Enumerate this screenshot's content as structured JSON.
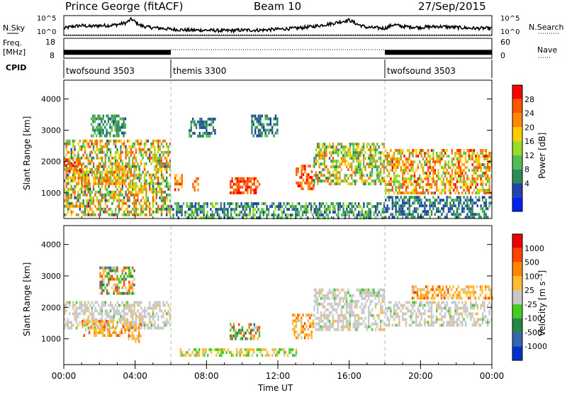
{
  "header": {
    "station": "Prince George (fitACF)",
    "beam": "Beam 10",
    "date": "27/Sep/2015"
  },
  "left_labels": {
    "nsky": "N.Sky",
    "freq_top": "Freq.",
    "freq_unit": "[MHz]",
    "cpid": "CPID"
  },
  "right_labels": {
    "nsearch": "N.Search",
    "nave": "Nave"
  },
  "colors": {
    "power_scale": [
      "#0022ee",
      "#2244aa",
      "#2e8b57",
      "#55bb55",
      "#99dd22",
      "#ffcc00",
      "#ff8800",
      "#ff5500",
      "#ff0000"
    ],
    "velocity_scale": [
      "#0033cc",
      "#3366aa",
      "#228844",
      "#44cc22",
      "#c8c8c8",
      "#ffbb33",
      "#ff8800",
      "#ff4400",
      "#ee0000"
    ],
    "mode_divider": "#bbbbbb"
  },
  "chart_data": [
    {
      "type": "line",
      "name": "nsky-nsearch",
      "ylabels": [
        "10^5",
        "10^0"
      ],
      "ylabels_right": [
        "10^5",
        "10^0"
      ],
      "x_hours": [
        0,
        0.5,
        1,
        1.5,
        2,
        2.5,
        3,
        3.5,
        3.8,
        4,
        4.3,
        4.8,
        5.5,
        6,
        7,
        8,
        9,
        10,
        11,
        12,
        13,
        14,
        15,
        16,
        16.5,
        17,
        18,
        18.5,
        19,
        20,
        21,
        22,
        23,
        24
      ],
      "y_level": [
        0.35,
        0.45,
        0.5,
        0.45,
        0.5,
        0.5,
        0.55,
        0.65,
        0.85,
        0.7,
        0.5,
        0.4,
        0.35,
        0.3,
        0.25,
        0.25,
        0.22,
        0.25,
        0.25,
        0.3,
        0.35,
        0.45,
        0.6,
        0.8,
        0.55,
        0.4,
        0.35,
        0.55,
        0.45,
        0.4,
        0.45,
        0.4,
        0.35,
        0.35
      ]
    },
    {
      "type": "line",
      "name": "freq-nave",
      "ylabels": [
        "18",
        "8"
      ],
      "ylabels_right": [
        "60",
        "0"
      ],
      "segments_mhz": [
        {
          "start": 0,
          "end": 6,
          "freq_mhz": 10.6
        },
        {
          "start": 18,
          "end": 24,
          "freq_mhz": 10.6
        }
      ],
      "nave_dotted": {
        "start": 6,
        "end": 18
      }
    },
    {
      "type": "table",
      "name": "cpid",
      "modes": [
        {
          "start": 0,
          "label": "twofsound 3503"
        },
        {
          "start": 6,
          "label": "themis 3300"
        },
        {
          "start": 18,
          "label": "twofsound 3503"
        }
      ]
    },
    {
      "type": "heatmap",
      "name": "power",
      "ylabel": "Slant Range [km]",
      "yticks": [
        1000,
        2000,
        3000,
        4000
      ],
      "ylim": [
        180,
        4600
      ],
      "xlim": [
        0,
        24
      ],
      "colorbar_label": "Power [dB]",
      "colorbar_ticks": [
        "28",
        "24",
        "20",
        "16",
        "12",
        "8",
        "4"
      ],
      "colorbar_range": [
        0,
        32
      ],
      "regions": [
        {
          "x0": 0,
          "x1": 6,
          "r0": 300,
          "r1": 2700,
          "v0": 6,
          "v1": 28
        },
        {
          "x0": 0,
          "x1": 1,
          "r0": 1700,
          "r1": 2100,
          "v0": 22,
          "v1": 30
        },
        {
          "x0": 0.5,
          "x1": 3.5,
          "r0": 1300,
          "r1": 1700,
          "v0": 16,
          "v1": 26
        },
        {
          "x0": 1.5,
          "x1": 3.5,
          "r0": 2800,
          "r1": 3500,
          "v0": 6,
          "v1": 14
        },
        {
          "x0": 3.6,
          "x1": 4.3,
          "r0": 1000,
          "r1": 1600,
          "v0": 14,
          "v1": 26
        },
        {
          "x0": 6,
          "x1": 18,
          "r0": 200,
          "r1": 700,
          "v0": 4,
          "v1": 16
        },
        {
          "x0": 6.2,
          "x1": 6.6,
          "r0": 1100,
          "r1": 1600,
          "v0": 18,
          "v1": 30
        },
        {
          "x0": 7,
          "x1": 8.5,
          "r0": 2800,
          "r1": 3400,
          "v0": 4,
          "v1": 12
        },
        {
          "x0": 7.2,
          "x1": 7.5,
          "r0": 1100,
          "r1": 1500,
          "v0": 20,
          "v1": 30
        },
        {
          "x0": 9.3,
          "x1": 11,
          "r0": 1000,
          "r1": 1500,
          "v0": 24,
          "v1": 30
        },
        {
          "x0": 10.5,
          "x1": 12,
          "r0": 2800,
          "r1": 3500,
          "v0": 4,
          "v1": 12
        },
        {
          "x0": 13,
          "x1": 14,
          "r0": 1100,
          "r1": 1900,
          "v0": 22,
          "v1": 30
        },
        {
          "x0": 14,
          "x1": 18,
          "r0": 1300,
          "r1": 2600,
          "v0": 8,
          "v1": 26
        },
        {
          "x0": 18,
          "x1": 24,
          "r0": 1000,
          "r1": 2400,
          "v0": 12,
          "v1": 30
        },
        {
          "x0": 18,
          "x1": 24,
          "r0": 200,
          "r1": 900,
          "v0": 4,
          "v1": 12
        }
      ]
    },
    {
      "type": "heatmap",
      "name": "velocity",
      "ylabel": "Slant Range [km]",
      "yticks": [
        1000,
        2000,
        3000,
        4000
      ],
      "ylim": [
        180,
        4600
      ],
      "xlim": [
        0,
        24
      ],
      "xticks": [
        "00:00",
        "04:00",
        "08:00",
        "12:00",
        "16:00",
        "20:00",
        "00:00"
      ],
      "xlabel": "Time UT",
      "colorbar_label": "Velocity [m s⁻¹]",
      "colorbar_ticks": [
        "1000",
        "500",
        "100",
        "25",
        "-25",
        "-100",
        "-500",
        "-1000"
      ],
      "regions": [
        {
          "x0": 0,
          "x1": 6,
          "r0": 1300,
          "r1": 2200,
          "class": "grey"
        },
        {
          "x0": 1,
          "x1": 3.5,
          "r0": 1100,
          "r1": 1600,
          "class": "orange"
        },
        {
          "x0": 2,
          "x1": 4,
          "r0": 2400,
          "r1": 3300,
          "class": "mixed"
        },
        {
          "x0": 3.6,
          "x1": 4.3,
          "r0": 900,
          "r1": 1500,
          "class": "orange"
        },
        {
          "x0": 6.5,
          "x1": 13,
          "r0": 450,
          "r1": 700,
          "class": "green-orange"
        },
        {
          "x0": 9.3,
          "x1": 11,
          "r0": 1000,
          "r1": 1500,
          "class": "mixed"
        },
        {
          "x0": 12.8,
          "x1": 14,
          "r0": 1000,
          "r1": 1800,
          "class": "orange"
        },
        {
          "x0": 14,
          "x1": 18,
          "r0": 1300,
          "r1": 2600,
          "class": "grey"
        },
        {
          "x0": 18,
          "x1": 24,
          "r0": 1400,
          "r1": 2200,
          "class": "grey"
        },
        {
          "x0": 19.5,
          "x1": 24,
          "r0": 2300,
          "r1": 2700,
          "class": "orange"
        }
      ]
    }
  ]
}
